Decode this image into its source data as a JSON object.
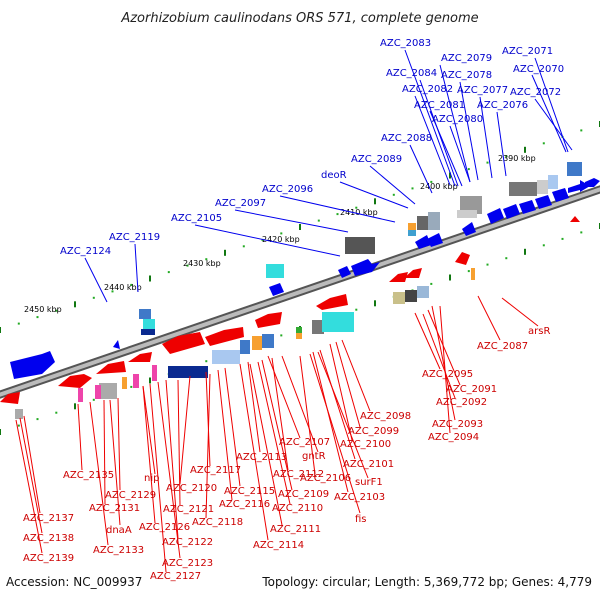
{
  "title": "Azorhizobium caulinodans ORS 571, complete genome",
  "accession": "Accession: NC_009937",
  "summary": "Topology: circular; Length: 5,369,772 bp; Genes: 4,779",
  "colors": {
    "forward_label": "#0000cc",
    "reverse_label": "#dd0000",
    "forward_gene": "#0000ee",
    "reverse_gene": "#ee0000",
    "ruler_tick": "#22aa22",
    "backbone": "#888888"
  },
  "kbp_labels": [
    "2390 kbp",
    "2400 kbp",
    "2410 kbp",
    "2420 kbp",
    "2430 kbp",
    "2440 kbp",
    "2450 kbp"
  ],
  "forward_labels": [
    "AZC_2083",
    "AZC_2079",
    "AZC_2071",
    "AZC_2084",
    "AZC_2078",
    "AZC_2070",
    "AZC_2082",
    "AZC_2077",
    "AZC_2072",
    "AZC_2081",
    "AZC_2076",
    "AZC_2080",
    "AZC_2088",
    "AZC_2089",
    "deoR",
    "AZC_2096",
    "AZC_2097",
    "AZC_2105",
    "AZC_2119",
    "AZC_2124"
  ],
  "reverse_labels": [
    "arsR",
    "AZC_2087",
    "AZC_2095",
    "AZC_2091",
    "AZC_2092",
    "AZC_2093",
    "AZC_2094",
    "AZC_2098",
    "AZC_2099",
    "AZC_2100",
    "AZC_2101",
    "AZC_2103",
    "fis",
    "surF1",
    "AZC_2106",
    "AZC_2107",
    "gntR",
    "AZC_2112",
    "AZC_2113",
    "AZC_2109",
    "AZC_2110",
    "AZC_2111",
    "AZC_2114",
    "AZC_2115",
    "AZC_2116",
    "AZC_2117",
    "AZC_2118",
    "AZC_2120",
    "AZC_2121",
    "AZC_2122",
    "AZC_2123",
    "AZC_2127",
    "AZC_2126",
    "nip",
    "AZC_2129",
    "AZC_2131",
    "dnaA",
    "AZC_2133",
    "AZC_2135",
    "AZC_2137",
    "AZC_2138",
    "AZC_2139"
  ]
}
